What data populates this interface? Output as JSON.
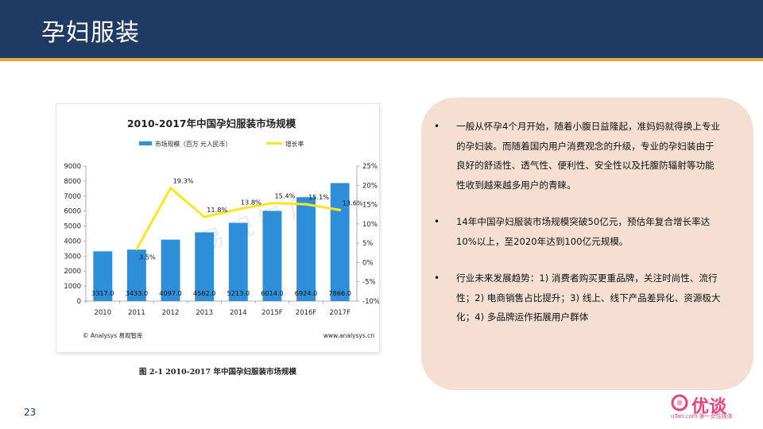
{
  "page": {
    "title": "孕妇服装",
    "page_number": "23"
  },
  "chart_caption": "图 2-1 2010-2017 年中国孕妇服装市场规模",
  "chart_footer": {
    "source": "© Analysys 易观智库",
    "url": "www.analysys.cn"
  },
  "watermark": "易 观 智 库",
  "chart_data": {
    "type": "bar",
    "title": "2010-2017年中国孕妇服装市场规模",
    "categories": [
      "2010",
      "2011",
      "2012",
      "2013",
      "2014",
      "2015F",
      "2016F",
      "2017F"
    ],
    "series": [
      {
        "name": "市场规模（百万 元人民币）",
        "type": "bar",
        "axis": "left",
        "color": "#2e8fd8",
        "values": [
          3317.0,
          3433.0,
          4097.0,
          4582.0,
          5213.0,
          6014.0,
          6924.0,
          7866.0
        ],
        "labels": [
          "3317.0",
          "3433.0",
          "4097.0",
          "4582.0",
          "5213.0",
          "6014.0",
          "6924.0",
          "7866.0"
        ]
      },
      {
        "name": "增长率",
        "type": "line",
        "axis": "right",
        "color": "#ffe51f",
        "values": [
          null,
          3.5,
          19.3,
          11.8,
          13.8,
          15.4,
          15.1,
          13.6
        ],
        "labels": [
          "",
          "3.5%",
          "19.3%",
          "11.8%",
          "13.8%",
          "15.4%",
          "15.1%",
          "13.6%"
        ]
      }
    ],
    "y_left": {
      "min": 0,
      "max": 9000,
      "step": 1000,
      "ticks": [
        "0",
        "1000",
        "2000",
        "3000",
        "4000",
        "5000",
        "6000",
        "7000",
        "8000",
        "9000"
      ]
    },
    "y_right": {
      "min": -10,
      "max": 25,
      "step": 5,
      "ticks": [
        "-10%",
        "-5%",
        "0%",
        "5%",
        "10%",
        "15%",
        "20%",
        "25%"
      ]
    },
    "legend_position": "top-center",
    "grid": false
  },
  "bullets": [
    {
      "text": "一般从怀孕4个月开始，随着小腹日益隆起，准妈妈就得换上专业的孕妇装。而随着国内用户消费观念的升级，专业的孕妇装由于良好的舒适性、透气性、便利性、安全性以及托腹防辐射等功能性收到越来越多用户的青睐。"
    },
    {
      "text": "14年中国孕妇服装市场规模突破50亿元，预估年复合增长率达10%以上，至2020年达到100亿元规模。"
    },
    {
      "text": "行业未来发展趋势：1) 消费者购买更重品牌，关注时尚性、流行性；2) 电商销售占比提升；3) 线上、线下产品差异化、资源极大化；4) 多品牌运作拓展用户群体"
    }
  ],
  "bullet_marker": "•",
  "logo": {
    "name": "优谈",
    "subtitle": "uTan.com 第一女性媒体",
    "color": "#e9447a"
  },
  "colors": {
    "header": "#1f3a63",
    "header_rule": "#e0a93b",
    "panel": "#f5dfd2"
  }
}
